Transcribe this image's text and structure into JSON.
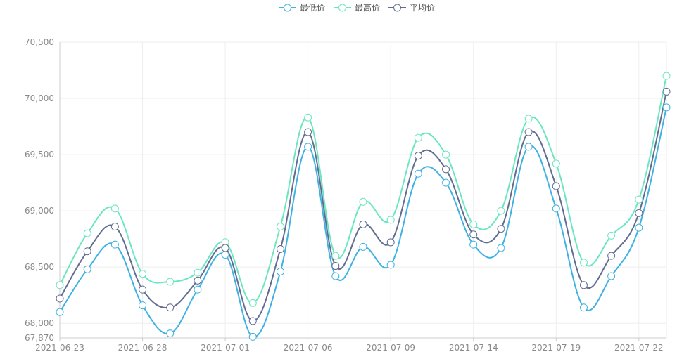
{
  "chart_data": {
    "type": "line",
    "title": "",
    "xlabel": "",
    "ylabel": "",
    "smooth": true,
    "grid": true,
    "legend_position": "top-center",
    "ylim": [
      67870,
      70500
    ],
    "y_ticks": [
      "67,870",
      "68,000",
      "68,500",
      "69,000",
      "69,500",
      "70,000",
      "70,500"
    ],
    "y_tick_values": [
      67870,
      68000,
      68500,
      69000,
      69500,
      70000,
      70500
    ],
    "x_tick_labels": [
      "2021-06-23",
      "2021-06-28",
      "2021-07-01",
      "2021-07-06",
      "2021-07-09",
      "2021-07-14",
      "2021-07-19",
      "2021-07-22"
    ],
    "x_tick_indices": [
      0,
      3,
      6,
      9,
      12,
      15,
      18,
      21
    ],
    "categories": [
      "2021-06-23",
      "2021-06-24",
      "2021-06-25",
      "2021-06-28",
      "2021-06-29",
      "2021-06-30",
      "2021-07-01",
      "2021-07-02",
      "2021-07-05",
      "2021-07-06",
      "2021-07-07",
      "2021-07-08",
      "2021-07-09",
      "2021-07-12",
      "2021-07-13",
      "2021-07-14",
      "2021-07-15",
      "2021-07-16",
      "2021-07-19",
      "2021-07-20",
      "2021-07-21",
      "2021-07-22",
      "2021-07-23"
    ],
    "series": [
      {
        "name": "最低价",
        "color": "#3fb1e3",
        "values": [
          68100,
          68480,
          68700,
          68160,
          67910,
          68300,
          68610,
          67880,
          68460,
          69570,
          68420,
          68680,
          68520,
          69330,
          69250,
          68700,
          68670,
          69570,
          69020,
          68140,
          68420,
          68850,
          69920
        ]
      },
      {
        "name": "最高价",
        "color": "#6be6c1",
        "values": [
          68340,
          68800,
          69020,
          68440,
          68370,
          68450,
          68720,
          68180,
          68860,
          69830,
          68600,
          69080,
          68920,
          69650,
          69500,
          68880,
          69000,
          69820,
          69420,
          68540,
          68780,
          69100,
          70200
        ]
      },
      {
        "name": "平均价",
        "color": "#626c91",
        "values": [
          68220,
          68640,
          68860,
          68300,
          68140,
          68380,
          68670,
          68020,
          68660,
          69700,
          68510,
          68880,
          68720,
          69490,
          69370,
          68790,
          68840,
          69700,
          69220,
          68340,
          68600,
          68980,
          70060
        ]
      }
    ]
  }
}
